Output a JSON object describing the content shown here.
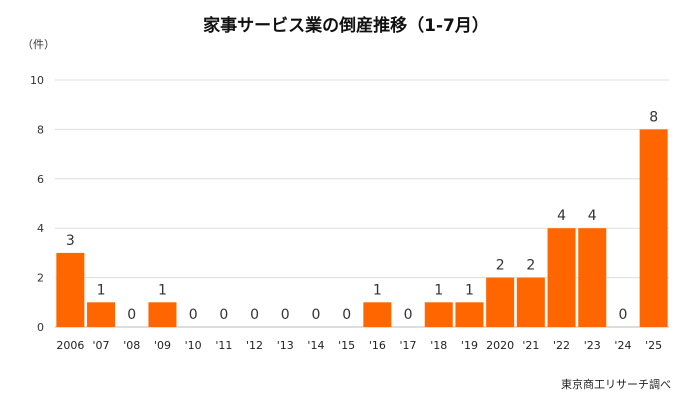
{
  "chart_data": {
    "type": "bar",
    "title": "家事サービス業の倒産推移（1-7月）",
    "unit_label": "（件）",
    "source": "東京商工リサーチ調べ",
    "categories": [
      "2006",
      "'07",
      "'08",
      "'09",
      "'10",
      "'11",
      "'12",
      "'13",
      "'14",
      "'15",
      "'16",
      "'17",
      "'18",
      "'19",
      "2020",
      "'21",
      "'22",
      "'23",
      "'24",
      "'25"
    ],
    "values": [
      3,
      1,
      0,
      1,
      0,
      0,
      0,
      0,
      0,
      0,
      1,
      0,
      1,
      1,
      2,
      2,
      4,
      4,
      0,
      8
    ],
    "ylim": [
      0,
      10
    ],
    "yticks": [
      0,
      2,
      4,
      6,
      8,
      10
    ],
    "grid": true,
    "legend": "none",
    "bar_color": "#FF6600"
  }
}
